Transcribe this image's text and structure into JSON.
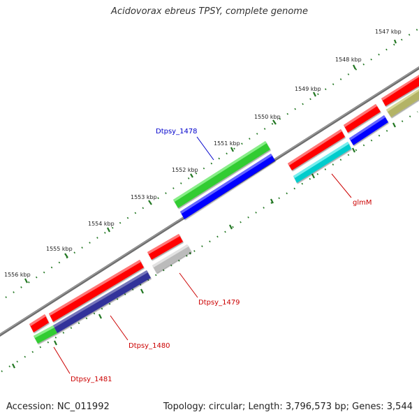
{
  "title": "Acidovorax ebreus TPSY, complete genome",
  "footer": {
    "accession": "Accession: NC_011992",
    "summary": "Topology: circular; Length: 3,796,573 bp; Genes: 3,544"
  },
  "scale": {
    "unit": "kbp",
    "ticks": [
      {
        "kbp": 1547,
        "label": "1547 kbp"
      },
      {
        "kbp": 1548,
        "label": "1548 kbp"
      },
      {
        "kbp": 1549,
        "label": "1549 kbp"
      },
      {
        "kbp": 1550,
        "label": "1550 kbp"
      },
      {
        "kbp": 1551,
        "label": "1551 kbp"
      },
      {
        "kbp": 1552,
        "label": "1552 kbp"
      },
      {
        "kbp": 1553,
        "label": "1553 kbp"
      },
      {
        "kbp": 1554,
        "label": "1554 kbp"
      },
      {
        "kbp": 1555,
        "label": "1555 kbp"
      },
      {
        "kbp": 1556,
        "label": "1556 kbp"
      }
    ]
  },
  "labels": {
    "dtpsy_1478": "Dtpsy_1478",
    "glmM": "glmM",
    "dtpsy_1479": "Dtpsy_1479",
    "dtpsy_1480": "Dtpsy_1480",
    "dtpsy_1481": "Dtpsy_1481"
  },
  "colors": {
    "red": "#ff0000",
    "green": "#33cc33",
    "blue": "#0000ff",
    "navy": "#33339a",
    "cyan": "#00cccc",
    "gray": "#bbbbbb",
    "olive": "#b3b366",
    "backbone": "#707070",
    "tick": "#227722",
    "label_red": "#cc0000",
    "label_blue": "#0000cc"
  }
}
